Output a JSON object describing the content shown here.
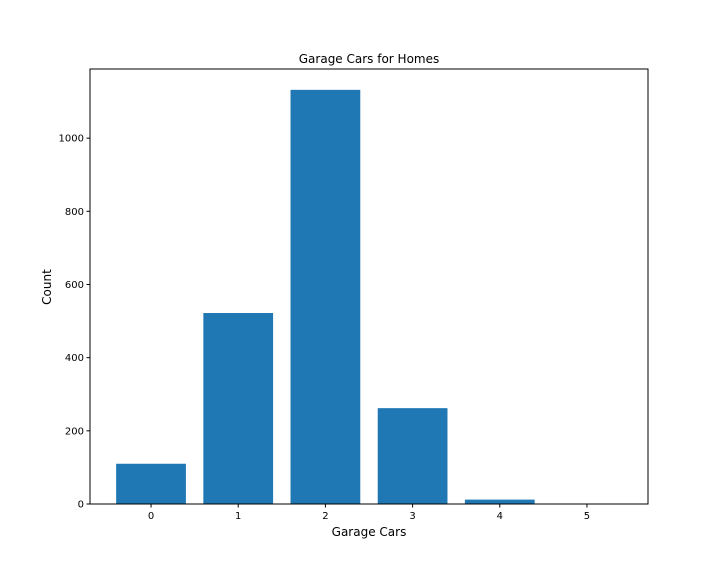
{
  "chart_data": {
    "type": "bar",
    "title": "Garage Cars for Homes",
    "xlabel": "Garage Cars",
    "ylabel": "Count",
    "categories": [
      "0",
      "1",
      "2",
      "3",
      "4",
      "5"
    ],
    "values": [
      110,
      522,
      1132,
      262,
      12,
      1
    ],
    "ylim": [
      0,
      1189
    ],
    "yticks": [
      0,
      200,
      400,
      600,
      800,
      1000
    ],
    "bar_color": "#1f77b4",
    "grid": false,
    "legend": "none"
  }
}
